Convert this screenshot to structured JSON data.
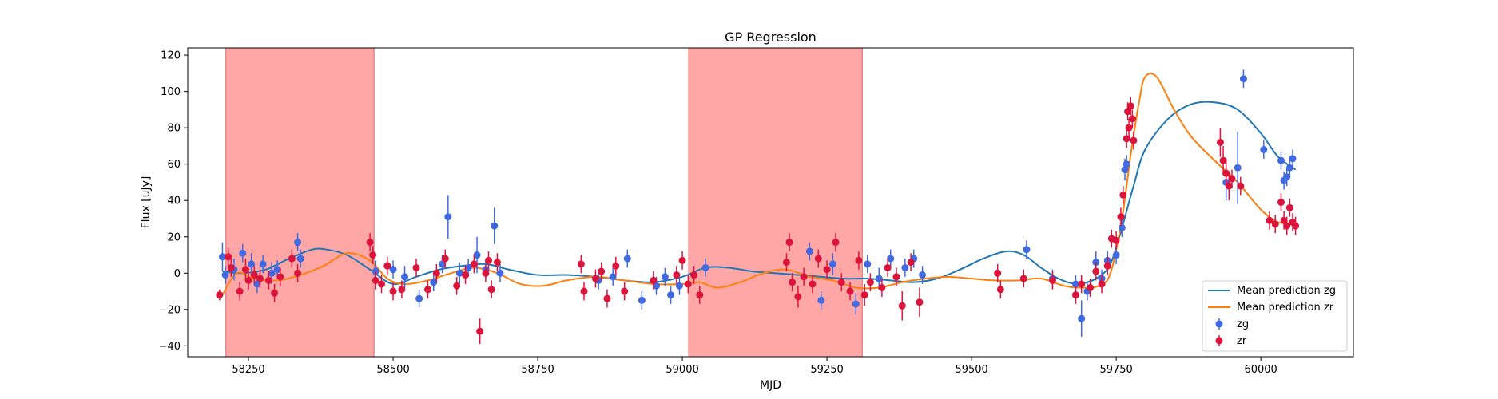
{
  "chart_data": {
    "type": "scatter",
    "title": "GP Regression",
    "xlabel": "MJD",
    "ylabel": "Flux [uJy]",
    "xlim": [
      58145,
      60160
    ],
    "ylim": [
      -46,
      124
    ],
    "xticks": [
      58250,
      58500,
      58750,
      59000,
      59250,
      59500,
      59750,
      60000
    ],
    "yticks": [
      -40,
      -20,
      0,
      20,
      40,
      60,
      80,
      100,
      120
    ],
    "grid": false,
    "legend_position": "lower-right",
    "colors": {
      "zg_line": "#1f77b4",
      "zr_line": "#ff7f0e",
      "zg_points": "#4169e1",
      "zr_points": "#dc143c",
      "shaded": "#ff6b6b"
    },
    "shaded_regions": [
      {
        "x0": 58211,
        "x1": 58467
      },
      {
        "x0": 59011,
        "x1": 59311
      }
    ],
    "series": [
      {
        "name": "Mean prediction zg",
        "kind": "line",
        "x": [
          58205,
          58240,
          58280,
          58320,
          58360,
          58385,
          58420,
          58460,
          58500,
          58540,
          58580,
          58620,
          58660,
          58700,
          58750,
          58800,
          58850,
          58900,
          58950,
          59000,
          59040,
          59080,
          59120,
          59160,
          59200,
          59240,
          59280,
          59320,
          59360,
          59400,
          59440,
          59480,
          59520,
          59560,
          59590,
          59620,
          59650,
          59680,
          59700,
          59720,
          59740,
          59760,
          59780,
          59800,
          59840,
          59880,
          59920,
          59960,
          60000,
          60030,
          60060
        ],
        "y": [
          1,
          0,
          2,
          8,
          13,
          13,
          10,
          2,
          -6,
          -2,
          2,
          4,
          5,
          2,
          -1,
          -1,
          -2,
          -4,
          -5,
          -2,
          3,
          3,
          1,
          0,
          -1,
          -2,
          -3,
          -3,
          -4,
          -5,
          -3,
          2,
          8,
          12,
          10,
          3,
          -3,
          -6,
          -5,
          -2,
          5,
          25,
          48,
          68,
          85,
          93,
          94,
          90,
          77,
          64,
          57
        ]
      },
      {
        "name": "Mean prediction zr",
        "kind": "line",
        "x": [
          58205,
          58230,
          58260,
          58300,
          58340,
          58380,
          58420,
          58460,
          58490,
          58520,
          58560,
          58600,
          58640,
          58680,
          58720,
          58760,
          58800,
          58850,
          58900,
          58950,
          59000,
          59030,
          59060,
          59100,
          59140,
          59180,
          59220,
          59260,
          59300,
          59340,
          59380,
          59420,
          59460,
          59500,
          59540,
          59580,
          59620,
          59660,
          59690,
          59720,
          59740,
          59760,
          59775,
          59790,
          59800,
          59820,
          59850,
          59880,
          59920,
          59960,
          60000,
          60030,
          60060
        ],
        "y": [
          -12,
          0,
          -3,
          -4,
          -1,
          4,
          11,
          7,
          -3,
          -6,
          -4,
          0,
          3,
          0,
          -6,
          -7,
          -4,
          -2,
          -4,
          -6,
          -6,
          -5,
          -8,
          -5,
          0,
          2,
          -2,
          -4,
          -8,
          -8,
          -5,
          -3,
          -2,
          -3,
          -4,
          -4,
          -3,
          -7,
          -8,
          -7,
          0,
          30,
          65,
          95,
          108,
          108,
          90,
          75,
          62,
          50,
          35,
          28,
          28
        ]
      },
      {
        "name": "zg",
        "kind": "errorbar",
        "points": [
          {
            "x": 58205,
            "y": 9,
            "e": 8
          },
          {
            "x": 58210,
            "y": -1,
            "e": 5
          },
          {
            "x": 58225,
            "y": 2,
            "e": 6
          },
          {
            "x": 58240,
            "y": 11,
            "e": 5
          },
          {
            "x": 58255,
            "y": 5,
            "e": 6
          },
          {
            "x": 58265,
            "y": -6,
            "e": 5
          },
          {
            "x": 58275,
            "y": 5,
            "e": 5
          },
          {
            "x": 58290,
            "y": 0,
            "e": 6
          },
          {
            "x": 58300,
            "y": 2,
            "e": 5
          },
          {
            "x": 58335,
            "y": 17,
            "e": 5
          },
          {
            "x": 58340,
            "y": 8,
            "e": 5
          },
          {
            "x": 58470,
            "y": 1,
            "e": 6
          },
          {
            "x": 58500,
            "y": 2,
            "e": 5
          },
          {
            "x": 58520,
            "y": -2,
            "e": 6
          },
          {
            "x": 58545,
            "y": -14,
            "e": 5
          },
          {
            "x": 58570,
            "y": -5,
            "e": 5
          },
          {
            "x": 58585,
            "y": 5,
            "e": 5
          },
          {
            "x": 58595,
            "y": 31,
            "e": 12
          },
          {
            "x": 58615,
            "y": 0,
            "e": 6
          },
          {
            "x": 58630,
            "y": 3,
            "e": 5
          },
          {
            "x": 58645,
            "y": 10,
            "e": 10
          },
          {
            "x": 58660,
            "y": 2,
            "e": 5
          },
          {
            "x": 58675,
            "y": 26,
            "e": 10
          },
          {
            "x": 58685,
            "y": 0,
            "e": 5
          },
          {
            "x": 58855,
            "y": -4,
            "e": 5
          },
          {
            "x": 58880,
            "y": -2,
            "e": 5
          },
          {
            "x": 58905,
            "y": 8,
            "e": 5
          },
          {
            "x": 58930,
            "y": -15,
            "e": 5
          },
          {
            "x": 58955,
            "y": -7,
            "e": 5
          },
          {
            "x": 58970,
            "y": -2,
            "e": 5
          },
          {
            "x": 58980,
            "y": -12,
            "e": 5
          },
          {
            "x": 58995,
            "y": -7,
            "e": 5
          },
          {
            "x": 59040,
            "y": 3,
            "e": 5
          },
          {
            "x": 59220,
            "y": 12,
            "e": 5
          },
          {
            "x": 59240,
            "y": -15,
            "e": 5
          },
          {
            "x": 59260,
            "y": 5,
            "e": 6
          },
          {
            "x": 59300,
            "y": -17,
            "e": 6
          },
          {
            "x": 59320,
            "y": 5,
            "e": 5
          },
          {
            "x": 59340,
            "y": -3,
            "e": 6
          },
          {
            "x": 59360,
            "y": 8,
            "e": 5
          },
          {
            "x": 59385,
            "y": 3,
            "e": 5
          },
          {
            "x": 59400,
            "y": 8,
            "e": 5
          },
          {
            "x": 59415,
            "y": -1,
            "e": 5
          },
          {
            "x": 59595,
            "y": 13,
            "e": 5
          },
          {
            "x": 59640,
            "y": -3,
            "e": 5
          },
          {
            "x": 59680,
            "y": -6,
            "e": 5
          },
          {
            "x": 59690,
            "y": -25,
            "e": 10
          },
          {
            "x": 59700,
            "y": -10,
            "e": 5
          },
          {
            "x": 59715,
            "y": 6,
            "e": 6
          },
          {
            "x": 59725,
            "y": -3,
            "e": 5
          },
          {
            "x": 59735,
            "y": 7,
            "e": 5
          },
          {
            "x": 59750,
            "y": 10,
            "e": 5
          },
          {
            "x": 59760,
            "y": 25,
            "e": 5
          },
          {
            "x": 59765,
            "y": 57,
            "e": 6
          },
          {
            "x": 59768,
            "y": 60,
            "e": 5
          },
          {
            "x": 59940,
            "y": 50,
            "e": 10
          },
          {
            "x": 59960,
            "y": 58,
            "e": 20
          },
          {
            "x": 59970,
            "y": 107,
            "e": 5
          },
          {
            "x": 60005,
            "y": 68,
            "e": 5
          },
          {
            "x": 60035,
            "y": 62,
            "e": 5
          },
          {
            "x": 60040,
            "y": 51,
            "e": 5
          },
          {
            "x": 60045,
            "y": 53,
            "e": 5
          },
          {
            "x": 60050,
            "y": 58,
            "e": 5
          },
          {
            "x": 60055,
            "y": 63,
            "e": 5
          }
        ]
      },
      {
        "name": "zr",
        "kind": "errorbar",
        "points": [
          {
            "x": 58200,
            "y": -12,
            "e": 3
          },
          {
            "x": 58215,
            "y": 9,
            "e": 5
          },
          {
            "x": 58220,
            "y": 3,
            "e": 5
          },
          {
            "x": 58235,
            "y": -10,
            "e": 5
          },
          {
            "x": 58245,
            "y": 2,
            "e": 6
          },
          {
            "x": 58250,
            "y": -4,
            "e": 5
          },
          {
            "x": 58260,
            "y": -1,
            "e": 5
          },
          {
            "x": 58270,
            "y": -3,
            "e": 5
          },
          {
            "x": 58285,
            "y": -4,
            "e": 5
          },
          {
            "x": 58295,
            "y": -11,
            "e": 5
          },
          {
            "x": 58305,
            "y": -2,
            "e": 5
          },
          {
            "x": 58325,
            "y": 8,
            "e": 5
          },
          {
            "x": 58335,
            "y": 0,
            "e": 5
          },
          {
            "x": 58460,
            "y": 17,
            "e": 5
          },
          {
            "x": 58465,
            "y": 10,
            "e": 5
          },
          {
            "x": 58470,
            "y": -4,
            "e": 5
          },
          {
            "x": 58480,
            "y": -6,
            "e": 5
          },
          {
            "x": 58490,
            "y": 4,
            "e": 5
          },
          {
            "x": 58500,
            "y": -10,
            "e": 5
          },
          {
            "x": 58515,
            "y": -9,
            "e": 5
          },
          {
            "x": 58540,
            "y": 3,
            "e": 5
          },
          {
            "x": 58560,
            "y": -9,
            "e": 5
          },
          {
            "x": 58575,
            "y": 0,
            "e": 5
          },
          {
            "x": 58590,
            "y": 8,
            "e": 5
          },
          {
            "x": 58610,
            "y": -7,
            "e": 5
          },
          {
            "x": 58625,
            "y": -1,
            "e": 5
          },
          {
            "x": 58640,
            "y": 5,
            "e": 5
          },
          {
            "x": 58650,
            "y": -32,
            "e": 7
          },
          {
            "x": 58660,
            "y": 0,
            "e": 5
          },
          {
            "x": 58665,
            "y": 7,
            "e": 5
          },
          {
            "x": 58670,
            "y": -9,
            "e": 5
          },
          {
            "x": 58680,
            "y": 6,
            "e": 5
          },
          {
            "x": 58825,
            "y": 5,
            "e": 5
          },
          {
            "x": 58830,
            "y": -10,
            "e": 5
          },
          {
            "x": 58850,
            "y": -3,
            "e": 5
          },
          {
            "x": 58860,
            "y": 1,
            "e": 5
          },
          {
            "x": 58870,
            "y": -14,
            "e": 5
          },
          {
            "x": 58885,
            "y": 4,
            "e": 5
          },
          {
            "x": 58900,
            "y": -10,
            "e": 5
          },
          {
            "x": 58950,
            "y": -4,
            "e": 5
          },
          {
            "x": 58990,
            "y": -1,
            "e": 5
          },
          {
            "x": 59000,
            "y": 7,
            "e": 5
          },
          {
            "x": 59010,
            "y": -6,
            "e": 5
          },
          {
            "x": 59020,
            "y": -1,
            "e": 5
          },
          {
            "x": 59030,
            "y": -12,
            "e": 5
          },
          {
            "x": 59180,
            "y": 6,
            "e": 5
          },
          {
            "x": 59185,
            "y": 17,
            "e": 5
          },
          {
            "x": 59190,
            "y": -5,
            "e": 5
          },
          {
            "x": 59200,
            "y": -13,
            "e": 6
          },
          {
            "x": 59210,
            "y": -2,
            "e": 5
          },
          {
            "x": 59225,
            "y": -6,
            "e": 5
          },
          {
            "x": 59235,
            "y": 8,
            "e": 5
          },
          {
            "x": 59250,
            "y": 2,
            "e": 5
          },
          {
            "x": 59265,
            "y": 17,
            "e": 5
          },
          {
            "x": 59275,
            "y": -5,
            "e": 5
          },
          {
            "x": 59290,
            "y": -10,
            "e": 5
          },
          {
            "x": 59305,
            "y": 7,
            "e": 5
          },
          {
            "x": 59315,
            "y": -12,
            "e": 6
          },
          {
            "x": 59325,
            "y": -5,
            "e": 5
          },
          {
            "x": 59345,
            "y": -8,
            "e": 5
          },
          {
            "x": 59355,
            "y": 3,
            "e": 5
          },
          {
            "x": 59370,
            "y": -2,
            "e": 5
          },
          {
            "x": 59380,
            "y": -18,
            "e": 8
          },
          {
            "x": 59395,
            "y": 6,
            "e": 5
          },
          {
            "x": 59410,
            "y": -16,
            "e": 8
          },
          {
            "x": 59545,
            "y": 0,
            "e": 5
          },
          {
            "x": 59550,
            "y": -9,
            "e": 5
          },
          {
            "x": 59590,
            "y": -3,
            "e": 5
          },
          {
            "x": 59640,
            "y": -4,
            "e": 5
          },
          {
            "x": 59680,
            "y": -12,
            "e": 5
          },
          {
            "x": 59690,
            "y": -6,
            "e": 5
          },
          {
            "x": 59705,
            "y": -8,
            "e": 5
          },
          {
            "x": 59715,
            "y": 1,
            "e": 5
          },
          {
            "x": 59725,
            "y": -6,
            "e": 5
          },
          {
            "x": 59735,
            "y": 4,
            "e": 5
          },
          {
            "x": 59742,
            "y": 19,
            "e": 5
          },
          {
            "x": 59750,
            "y": 18,
            "e": 5
          },
          {
            "x": 59758,
            "y": 31,
            "e": 5
          },
          {
            "x": 59762,
            "y": 43,
            "e": 5
          },
          {
            "x": 59768,
            "y": 74,
            "e": 5
          },
          {
            "x": 59770,
            "y": 89,
            "e": 5
          },
          {
            "x": 59772,
            "y": 80,
            "e": 5
          },
          {
            "x": 59775,
            "y": 92,
            "e": 5
          },
          {
            "x": 59778,
            "y": 85,
            "e": 5
          },
          {
            "x": 59780,
            "y": 73,
            "e": 5
          },
          {
            "x": 59930,
            "y": 72,
            "e": 8
          },
          {
            "x": 59935,
            "y": 62,
            "e": 8
          },
          {
            "x": 59940,
            "y": 55,
            "e": 8
          },
          {
            "x": 59945,
            "y": 48,
            "e": 8
          },
          {
            "x": 59950,
            "y": 52,
            "e": 5
          },
          {
            "x": 59965,
            "y": 48,
            "e": 5
          },
          {
            "x": 60015,
            "y": 29,
            "e": 5
          },
          {
            "x": 60025,
            "y": 27,
            "e": 5
          },
          {
            "x": 60035,
            "y": 39,
            "e": 5
          },
          {
            "x": 60040,
            "y": 29,
            "e": 5
          },
          {
            "x": 60045,
            "y": 26,
            "e": 5
          },
          {
            "x": 60050,
            "y": 36,
            "e": 5
          },
          {
            "x": 60055,
            "y": 28,
            "e": 5
          },
          {
            "x": 60060,
            "y": 26,
            "e": 5
          }
        ]
      }
    ]
  }
}
